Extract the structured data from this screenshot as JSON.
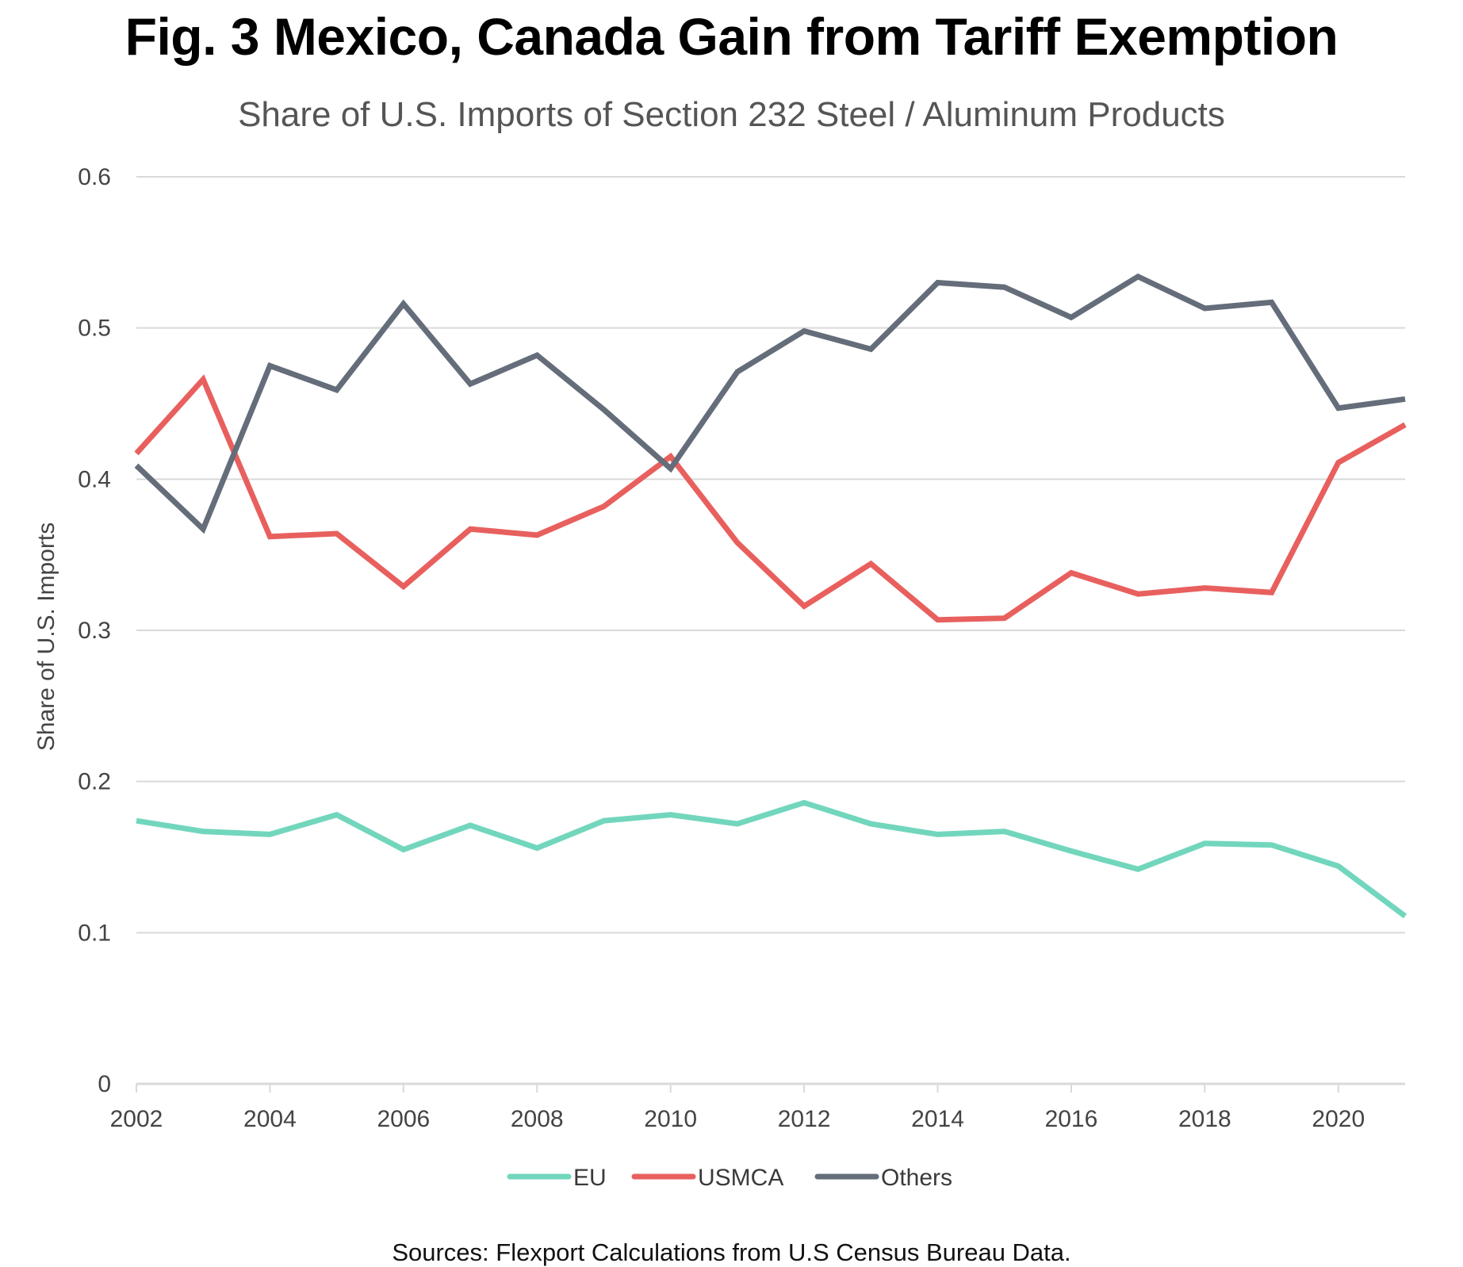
{
  "chart_data": {
    "type": "line",
    "title": "Fig. 3 Mexico, Canada Gain from Tariff Exemption",
    "subtitle": "Share of U.S. Imports of Section 232 Steel / Aluminum Products",
    "xlabel": "",
    "ylabel": "Share of U.S. Imports",
    "x": [
      2002,
      2003,
      2004,
      2005,
      2006,
      2007,
      2008,
      2009,
      2010,
      2011,
      2012,
      2013,
      2014,
      2015,
      2016,
      2017,
      2018,
      2019,
      2020,
      2021
    ],
    "xlim": [
      2002,
      2021
    ],
    "ylim": [
      0,
      0.6
    ],
    "x_ticks": [
      "2002",
      "2004",
      "2006",
      "2008",
      "2010",
      "2012",
      "2014",
      "2016",
      "2018",
      "2020"
    ],
    "x_tick_values": [
      2002,
      2004,
      2006,
      2008,
      2010,
      2012,
      2014,
      2016,
      2018,
      2020
    ],
    "y_ticks": [
      "0",
      "0.1",
      "0.2",
      "0.3",
      "0.4",
      "0.5",
      "0.6"
    ],
    "y_tick_values": [
      0,
      0.1,
      0.2,
      0.3,
      0.4,
      0.5,
      0.6
    ],
    "grid": "horizontal",
    "legend_position": "bottom-center",
    "series": [
      {
        "name": "EU",
        "color": "#72d6bd",
        "values": [
          0.174,
          0.167,
          0.165,
          0.178,
          0.155,
          0.171,
          0.156,
          0.174,
          0.178,
          0.172,
          0.186,
          0.172,
          0.165,
          0.167,
          0.154,
          0.142,
          0.159,
          0.158,
          0.144,
          0.111
        ]
      },
      {
        "name": "USMCA",
        "color": "#e8605e",
        "values": [
          0.417,
          0.466,
          0.362,
          0.364,
          0.329,
          0.367,
          0.363,
          0.382,
          0.415,
          0.358,
          0.316,
          0.344,
          0.307,
          0.308,
          0.338,
          0.324,
          0.328,
          0.325,
          0.411,
          0.436
        ]
      },
      {
        "name": "Others",
        "color": "#646d79",
        "values": [
          0.409,
          0.367,
          0.475,
          0.459,
          0.516,
          0.463,
          0.482,
          0.446,
          0.407,
          0.471,
          0.498,
          0.486,
          0.53,
          0.527,
          0.507,
          0.534,
          0.513,
          0.517,
          0.447,
          0.453
        ]
      }
    ],
    "source_note": "Sources: Flexport Calculations from U.S Census Bureau Data."
  }
}
